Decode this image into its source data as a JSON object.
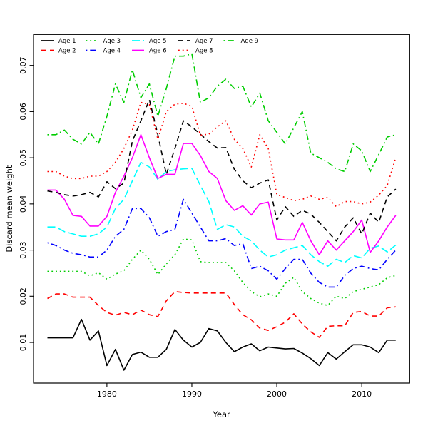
{
  "page": {
    "background": "#FFFFFF"
  },
  "chart_data": {
    "type": "line",
    "title": "",
    "xlabel": "Year",
    "ylabel": "Discard mean weight",
    "x_ticks": [
      1980,
      1990,
      2000,
      2010
    ],
    "y_ticks": [
      0.01,
      0.02,
      0.03,
      0.04,
      0.05,
      0.06,
      0.07
    ],
    "xlim": [
      1971.36,
      2015.64
    ],
    "ylim": [
      0.0012,
      0.0767
    ],
    "grid": false,
    "legend": {
      "position": "top-left",
      "ncol": 5,
      "fill_order": "column"
    },
    "x": [
      1973,
      1974,
      1975,
      1976,
      1977,
      1978,
      1979,
      1980,
      1981,
      1982,
      1983,
      1984,
      1985,
      1986,
      1987,
      1988,
      1989,
      1990,
      1991,
      1992,
      1993,
      1994,
      1995,
      1996,
      1997,
      1998,
      1999,
      2000,
      2001,
      2002,
      2003,
      2004,
      2005,
      2006,
      2007,
      2008,
      2009,
      2010,
      2011,
      2012,
      2013,
      2014
    ],
    "series": [
      {
        "name": "Age 1",
        "color": "#000000",
        "linetype": "solid",
        "values": [
          0.011,
          0.011,
          0.011,
          0.011,
          0.015,
          0.0105,
          0.0125,
          0.005,
          0.0085,
          0.004,
          0.0074,
          0.0079,
          0.0068,
          0.0068,
          0.0085,
          0.0128,
          0.0105,
          0.009,
          0.01,
          0.013,
          0.0125,
          0.01,
          0.008,
          0.009,
          0.0097,
          0.0082,
          0.009,
          0.0088,
          0.0086,
          0.0087,
          0.0077,
          0.0065,
          0.005,
          0.0078,
          0.0064,
          0.008,
          0.0095,
          0.0095,
          0.009,
          0.0078,
          0.0105,
          0.0105
        ]
      },
      {
        "name": "Age 2",
        "color": "#FF0000",
        "linetype": "dashed",
        "values": [
          0.0195,
          0.0205,
          0.0205,
          0.0198,
          0.0198,
          0.0198,
          0.018,
          0.0165,
          0.0159,
          0.0165,
          0.016,
          0.017,
          0.016,
          0.0156,
          0.019,
          0.021,
          0.0208,
          0.0207,
          0.0207,
          0.0207,
          0.0207,
          0.0207,
          0.0182,
          0.016,
          0.0149,
          0.0131,
          0.0126,
          0.0134,
          0.0144,
          0.0162,
          0.014,
          0.0123,
          0.0111,
          0.0135,
          0.0136,
          0.0136,
          0.0165,
          0.0167,
          0.0157,
          0.0157,
          0.0175,
          0.0177
        ]
      },
      {
        "name": "Age 3",
        "color": "#00CD00",
        "linetype": "dotted",
        "values": [
          0.0254,
          0.0254,
          0.0254,
          0.0254,
          0.0254,
          0.0244,
          0.0251,
          0.0237,
          0.0248,
          0.0255,
          0.028,
          0.03,
          0.028,
          0.0247,
          0.027,
          0.029,
          0.0324,
          0.0322,
          0.0275,
          0.0273,
          0.0273,
          0.0273,
          0.0255,
          0.023,
          0.021,
          0.0199,
          0.0205,
          0.02,
          0.0228,
          0.0241,
          0.021,
          0.0195,
          0.0185,
          0.018,
          0.02,
          0.0195,
          0.021,
          0.0215,
          0.022,
          0.0225,
          0.024,
          0.0245
        ]
      },
      {
        "name": "Age 4",
        "color": "#0000FF",
        "linetype": "dotdash",
        "values": [
          0.0316,
          0.031,
          0.03,
          0.0293,
          0.029,
          0.0285,
          0.0285,
          0.03,
          0.033,
          0.0345,
          0.039,
          0.039,
          0.037,
          0.033,
          0.034,
          0.0345,
          0.041,
          0.038,
          0.035,
          0.032,
          0.032,
          0.0325,
          0.031,
          0.0314,
          0.026,
          0.0265,
          0.0255,
          0.0237,
          0.026,
          0.028,
          0.028,
          0.025,
          0.023,
          0.022,
          0.022,
          0.0245,
          0.026,
          0.0265,
          0.026,
          0.0257,
          0.028,
          0.03
        ]
      },
      {
        "name": "Age 5",
        "color": "#00FFFF",
        "linetype": "longdash",
        "values": [
          0.035,
          0.035,
          0.034,
          0.0335,
          0.033,
          0.033,
          0.0335,
          0.035,
          0.039,
          0.041,
          0.045,
          0.049,
          0.048,
          0.0453,
          0.047,
          0.0474,
          0.0476,
          0.0477,
          0.044,
          0.0405,
          0.0345,
          0.0355,
          0.035,
          0.033,
          0.032,
          0.03,
          0.0285,
          0.029,
          0.03,
          0.0305,
          0.031,
          0.029,
          0.0275,
          0.0265,
          0.028,
          0.0273,
          0.0288,
          0.0283,
          0.0304,
          0.0309,
          0.0296,
          0.0311
        ]
      },
      {
        "name": "Age 6",
        "color": "#FF00FF",
        "linetype": "solid",
        "values": [
          0.043,
          0.043,
          0.041,
          0.0375,
          0.0373,
          0.0352,
          0.0352,
          0.0373,
          0.0425,
          0.046,
          0.05,
          0.055,
          0.05,
          0.0455,
          0.0464,
          0.0464,
          0.0531,
          0.0531,
          0.0505,
          0.047,
          0.0455,
          0.0407,
          0.0386,
          0.0396,
          0.0376,
          0.04,
          0.0404,
          0.0324,
          0.0322,
          0.0322,
          0.036,
          0.032,
          0.029,
          0.032,
          0.03,
          0.032,
          0.034,
          0.0365,
          0.0295,
          0.032,
          0.035,
          0.0375
        ]
      },
      {
        "name": "Age 7",
        "color": "#000000",
        "linetype": "dashed",
        "values": [
          0.0428,
          0.0425,
          0.042,
          0.0417,
          0.042,
          0.0425,
          0.0415,
          0.0448,
          0.0433,
          0.0445,
          0.0536,
          0.058,
          0.0626,
          0.055,
          0.0464,
          0.052,
          0.058,
          0.0567,
          0.0551,
          0.0535,
          0.0521,
          0.0522,
          0.0475,
          0.045,
          0.0435,
          0.0445,
          0.0452,
          0.0365,
          0.0394,
          0.0373,
          0.0386,
          0.0378,
          0.036,
          0.034,
          0.032,
          0.035,
          0.037,
          0.0335,
          0.038,
          0.036,
          0.0415,
          0.0432
        ]
      },
      {
        "name": "Age 8",
        "color": "#FF0000",
        "linetype": "dotted",
        "values": [
          0.047,
          0.047,
          0.046,
          0.0455,
          0.0455,
          0.046,
          0.046,
          0.047,
          0.049,
          0.052,
          0.056,
          0.062,
          0.0615,
          0.054,
          0.06,
          0.0616,
          0.0618,
          0.0611,
          0.0549,
          0.0551,
          0.0567,
          0.058,
          0.054,
          0.052,
          0.048,
          0.055,
          0.052,
          0.042,
          0.0414,
          0.0407,
          0.041,
          0.0417,
          0.041,
          0.0414,
          0.0394,
          0.0405,
          0.0405,
          0.04,
          0.0404,
          0.0419,
          0.044,
          0.05
        ]
      },
      {
        "name": "Age 9",
        "color": "#00CD00",
        "linetype": "dotdash",
        "values": [
          0.055,
          0.055,
          0.056,
          0.054,
          0.053,
          0.0555,
          0.053,
          0.059,
          0.066,
          0.062,
          0.069,
          0.063,
          0.066,
          0.059,
          0.065,
          0.072,
          0.072,
          0.0725,
          0.062,
          0.063,
          0.0655,
          0.067,
          0.065,
          0.0655,
          0.061,
          0.064,
          0.058,
          0.0555,
          0.053,
          0.0565,
          0.06,
          0.051,
          0.05,
          0.049,
          0.0476,
          0.047,
          0.053,
          0.0515,
          0.047,
          0.0507,
          0.0545,
          0.055
        ]
      }
    ]
  }
}
